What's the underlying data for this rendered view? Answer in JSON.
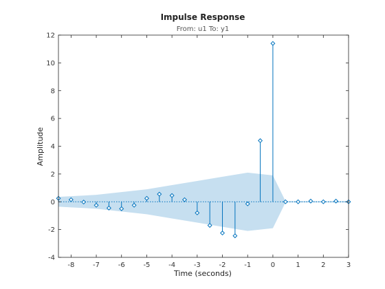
{
  "chart_data": {
    "type": "stem",
    "title": "Impulse Response",
    "subtitle": "From: u1  To: y1",
    "xlabel": "Time (seconds)",
    "ylabel": "Amplitude",
    "xlim": [
      -8.5,
      3
    ],
    "ylim": [
      -4,
      12
    ],
    "xticks": [
      -8,
      -7,
      -6,
      -5,
      -4,
      -3,
      -2,
      -1,
      0,
      1,
      2,
      3
    ],
    "yticks": [
      -4,
      -2,
      0,
      2,
      4,
      6,
      8,
      10,
      12
    ],
    "x": [
      -8.5,
      -8,
      -7.5,
      -7,
      -6.5,
      -6,
      -5.5,
      -5,
      -4.5,
      -4,
      -3.5,
      -3,
      -2.5,
      -2,
      -1.5,
      -1,
      -0.5,
      0,
      0.5,
      1,
      1.5,
      2,
      2.5,
      3
    ],
    "values": [
      0.25,
      0.15,
      -0.02,
      -0.25,
      -0.45,
      -0.5,
      -0.25,
      0.25,
      0.55,
      0.45,
      0.15,
      -0.8,
      -1.7,
      -2.25,
      -2.45,
      -0.15,
      4.4,
      11.4,
      0.0,
      0.0,
      0.05,
      0.0,
      0.05,
      0.0
    ],
    "confidence_band": {
      "x": [
        -8.5,
        -8,
        -7,
        -6,
        -5,
        -4,
        -3,
        -2,
        -1,
        0,
        0.5,
        3
      ],
      "upper": [
        0.35,
        0.4,
        0.5,
        0.7,
        0.9,
        1.2,
        1.5,
        1.8,
        2.1,
        1.9,
        0.05,
        0.05
      ],
      "lower": [
        -0.35,
        -0.4,
        -0.5,
        -0.7,
        -0.9,
        -1.2,
        -1.5,
        -1.8,
        -2.1,
        -1.9,
        -0.05,
        -0.05
      ]
    },
    "grid": false,
    "colors": {
      "stem": "#0072bd",
      "band": "#c6dff0",
      "axes": "#262626"
    }
  }
}
